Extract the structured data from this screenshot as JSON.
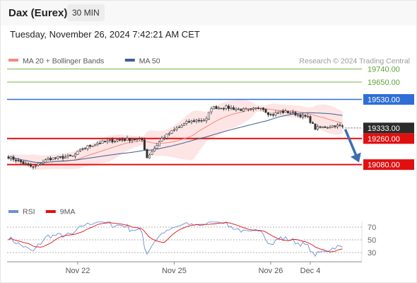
{
  "header": {
    "title": "Dax (Eurex)",
    "interval": "30 MIN",
    "datetime": "Tuesday, November 26, 2024 7:42:21 AM CET"
  },
  "chart_data": {
    "type": "candlestick",
    "instrument": "Dax (Eurex)",
    "timeframe": "30 MIN",
    "legend": [
      {
        "name": "MA 20 + Bollinger Bands",
        "color": "#f28b82"
      },
      {
        "name": "MA 50",
        "color": "#3d5f95"
      }
    ],
    "credit": "Research © 2024 Trading Central",
    "price_axis": {
      "min": 18800,
      "max": 19850
    },
    "levels": [
      {
        "value": 19740,
        "label": "19740.00",
        "color": "#7ab648",
        "type": "target",
        "line_width": 1
      },
      {
        "value": 19650,
        "label": "19650.00",
        "color": "#7ab648",
        "type": "target",
        "line_width": 1
      },
      {
        "value": 19530,
        "label": "19530.00",
        "color": "#2e6ed6",
        "type": "pivot",
        "line_width": 1.5
      },
      {
        "value": 19333,
        "label": "19333.00",
        "color": "#333333",
        "type": "last_price",
        "line_width": 0
      },
      {
        "value": 19260,
        "label": "19260.00",
        "color": "#e01010",
        "type": "support",
        "line_width": 2
      },
      {
        "value": 19080,
        "label": "19080.00",
        "color": "#e01010",
        "type": "support",
        "line_width": 2
      }
    ],
    "forecast_arrow": {
      "direction": "down",
      "from": 19333,
      "to": 19080,
      "color": "#3d6db0"
    },
    "price_waypoints": [
      [
        0,
        19135
      ],
      [
        10,
        19060
      ],
      [
        16,
        19120
      ],
      [
        26,
        19138
      ],
      [
        30,
        19190
      ],
      [
        36,
        19230
      ],
      [
        44,
        19250
      ],
      [
        50,
        19255
      ],
      [
        54,
        19250
      ],
      [
        56,
        19130
      ],
      [
        62,
        19260
      ],
      [
        68,
        19330
      ],
      [
        72,
        19370
      ],
      [
        76,
        19385
      ],
      [
        80,
        19390
      ],
      [
        82,
        19475
      ],
      [
        88,
        19475
      ],
      [
        94,
        19460
      ],
      [
        98,
        19455
      ],
      [
        102,
        19480
      ],
      [
        106,
        19420
      ],
      [
        110,
        19445
      ],
      [
        114,
        19440
      ],
      [
        118,
        19420
      ],
      [
        121,
        19405
      ],
      [
        124,
        19330
      ],
      [
        128,
        19340
      ],
      [
        132,
        19350
      ],
      [
        135,
        19345
      ]
    ],
    "indicator": {
      "name": "RSI",
      "legend": [
        {
          "name": "RSI",
          "color": "#6b8fd6"
        },
        {
          "name": "9MA",
          "color": "#e01010"
        }
      ],
      "ticks": [
        70,
        50,
        30
      ],
      "range": [
        20,
        80
      ]
    },
    "x_axis": {
      "ticks": [
        {
          "label": "Nov 22",
          "bar": 28
        },
        {
          "label": "Nov 25",
          "bar": 67
        },
        {
          "label": "Nov 26",
          "bar": 106
        },
        {
          "label": "Dec 4",
          "bar": 122
        }
      ]
    }
  }
}
